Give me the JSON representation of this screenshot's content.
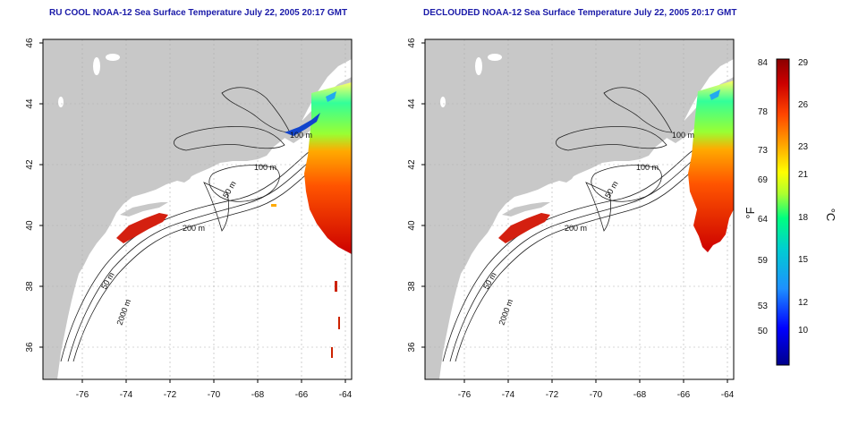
{
  "colors": {
    "land": "#c8c8c8",
    "ocean": "#ffffff",
    "grid": "#b0b0b0",
    "contour": "#222222",
    "title": "#1a1aa8",
    "colorbar": [
      "#00008b",
      "#0000ff",
      "#1e90ff",
      "#00ced1",
      "#00ff80",
      "#adff2f",
      "#ffff00",
      "#ffa500",
      "#ff4500",
      "#cc0000",
      "#8b0000"
    ]
  },
  "panels": [
    {
      "id": "left",
      "title": "RU COOL NOAA-12 Sea Surface Temperature July 22, 2005 20:17 GMT"
    },
    {
      "id": "right",
      "title": "DECLOUDED NOAA-12 Sea Surface Temperature July 22, 2005 20:17 GMT"
    }
  ],
  "axes": {
    "x_ticks": [
      "-76",
      "-74",
      "-72",
      "-70",
      "-68",
      "-66",
      "-64"
    ],
    "y_ticks": [
      "36",
      "38",
      "40",
      "42",
      "44",
      "46"
    ]
  },
  "contour_labels": [
    "100 m",
    "100 m",
    "50 m",
    "200 m",
    "50 m",
    "2000 m"
  ],
  "colorbar": {
    "f_ticks": [
      "84",
      "78",
      "73",
      "69",
      "64",
      "59",
      "53",
      "50"
    ],
    "c_ticks": [
      "29",
      "26",
      "23",
      "21",
      "18",
      "15",
      "12",
      "10"
    ],
    "f_unit": "°F",
    "c_unit": "°C"
  }
}
